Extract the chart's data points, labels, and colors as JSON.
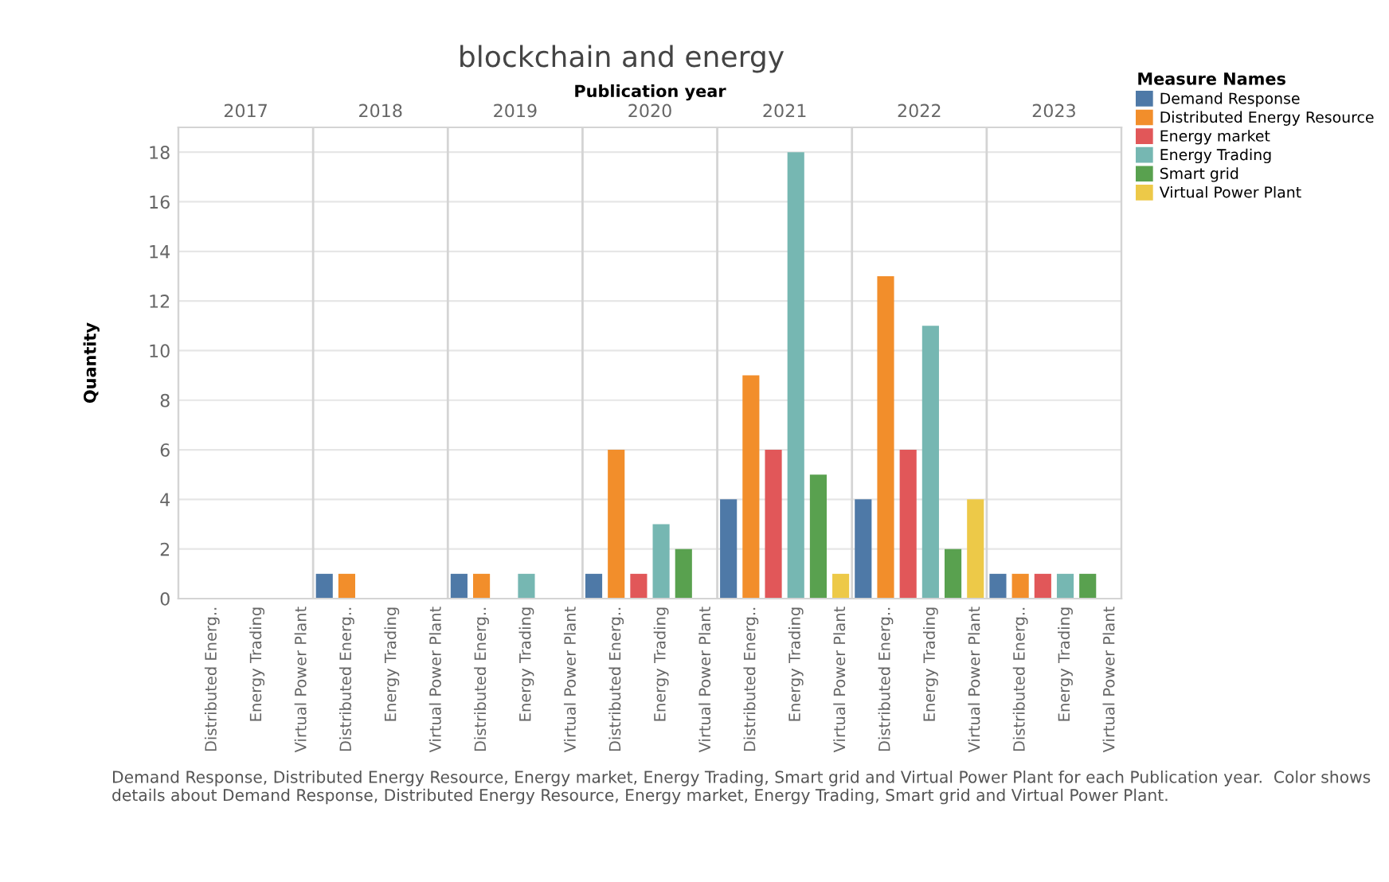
{
  "chart_data": {
    "type": "bar",
    "title": "blockchain and energy",
    "x2label": "Publication year",
    "ylabel": "Quantity",
    "legend": "right",
    "legend_title": "Measure Names",
    "grid": true,
    "annotations": [
      "Demand Response, Distributed Energy Resource, Energy market, Energy Trading, Smart grid and Virtual Power Plant for each Publication year.  Color shows details about Demand Response, Distributed Energy Resource, Energy market, Energy Trading, Smart grid and Virtual Power Plant."
    ],
    "categories": [
      null,
      "Distributed Energ..",
      null,
      "Energy Trading",
      null,
      "Virtual Power Plant",
      null,
      "Distributed Energ..",
      null,
      "Energy Trading",
      null,
      "Virtual Power Plant",
      null,
      "Distributed Energ..",
      null,
      "Energy Trading",
      null,
      "Virtual Power Plant",
      null,
      "Distributed Energ..",
      null,
      "Energy Trading",
      null,
      "Virtual Power Plant",
      null,
      "Distributed Energ..",
      null,
      "Energy Trading",
      null,
      "Virtual Power Plant",
      null,
      "Distributed Energ..",
      null,
      "Energy Trading",
      null,
      "Virtual Power Plant",
      null,
      "Distributed Energ..",
      null,
      "Energy Trading",
      null,
      "Virtual Power Plant"
    ],
    "ylim": [
      0,
      19
    ],
    "yticks": [
      0,
      2,
      4,
      6,
      8,
      10,
      12,
      14,
      16,
      18
    ],
    "x2lim": [
      2016.5,
      2023.5
    ],
    "x2ticks": [
      2017,
      {
        "value": 2017.5,
        "label": null
      },
      2018,
      {
        "value": 2018.5,
        "label": null
      },
      2019,
      {
        "value": 2019.5,
        "label": null
      },
      2020,
      {
        "value": 2020.5,
        "label": null
      },
      2021,
      {
        "value": 2021.5,
        "label": null
      },
      2022,
      {
        "value": 2022.5,
        "label": null
      },
      2023
    ],
    "series": [
      {
        "name": "Demand Response",
        "color": "#4e79a7",
        "values": [
          null,
          null,
          null,
          null,
          null,
          null,
          1,
          null,
          null,
          null,
          null,
          null,
          1,
          null,
          null,
          null,
          null,
          null,
          1,
          null,
          null,
          null,
          null,
          null,
          4,
          null,
          null,
          null,
          null,
          null,
          4,
          null,
          null,
          null,
          null,
          null,
          1,
          null,
          null,
          null,
          null,
          null
        ]
      },
      {
        "name": "Distributed Energy Resource",
        "color": "#f28e2b",
        "values": [
          null,
          null,
          null,
          null,
          null,
          null,
          null,
          1,
          null,
          null,
          null,
          null,
          null,
          1,
          null,
          null,
          null,
          null,
          null,
          6,
          null,
          null,
          null,
          null,
          null,
          9,
          null,
          null,
          null,
          null,
          null,
          13,
          null,
          null,
          null,
          null,
          null,
          1,
          null,
          null,
          null,
          null
        ]
      },
      {
        "name": "Energy market",
        "color": "#e15759",
        "values": [
          null,
          null,
          null,
          null,
          null,
          null,
          null,
          null,
          null,
          null,
          null,
          null,
          null,
          null,
          null,
          null,
          null,
          null,
          null,
          null,
          1,
          null,
          null,
          null,
          null,
          null,
          6,
          null,
          null,
          null,
          null,
          null,
          6,
          null,
          null,
          null,
          null,
          null,
          1,
          null,
          null,
          null
        ]
      },
      {
        "name": "Energy Trading",
        "color": "#76b7b2",
        "values": [
          null,
          null,
          null,
          null,
          null,
          null,
          null,
          null,
          null,
          null,
          null,
          null,
          null,
          null,
          null,
          1,
          null,
          null,
          null,
          null,
          null,
          3,
          null,
          null,
          null,
          null,
          null,
          18,
          null,
          null,
          null,
          null,
          null,
          11,
          null,
          null,
          null,
          null,
          null,
          1,
          null,
          null
        ]
      },
      {
        "name": "Smart grid",
        "color": "#59a14f",
        "values": [
          null,
          null,
          null,
          null,
          null,
          null,
          null,
          null,
          null,
          null,
          null,
          null,
          null,
          null,
          null,
          null,
          null,
          null,
          null,
          null,
          null,
          null,
          2,
          null,
          null,
          null,
          null,
          null,
          5,
          null,
          null,
          null,
          null,
          null,
          2,
          null,
          null,
          null,
          null,
          null,
          1,
          null
        ]
      },
      {
        "name": "Virtual Power Plant",
        "color": "#edc948",
        "values": [
          null,
          null,
          null,
          null,
          null,
          null,
          null,
          null,
          null,
          null,
          null,
          null,
          null,
          null,
          null,
          null,
          null,
          null,
          null,
          null,
          null,
          null,
          null,
          null,
          null,
          null,
          null,
          null,
          null,
          1,
          null,
          null,
          null,
          null,
          null,
          4,
          null,
          null,
          null,
          null,
          null,
          null
        ]
      }
    ]
  }
}
